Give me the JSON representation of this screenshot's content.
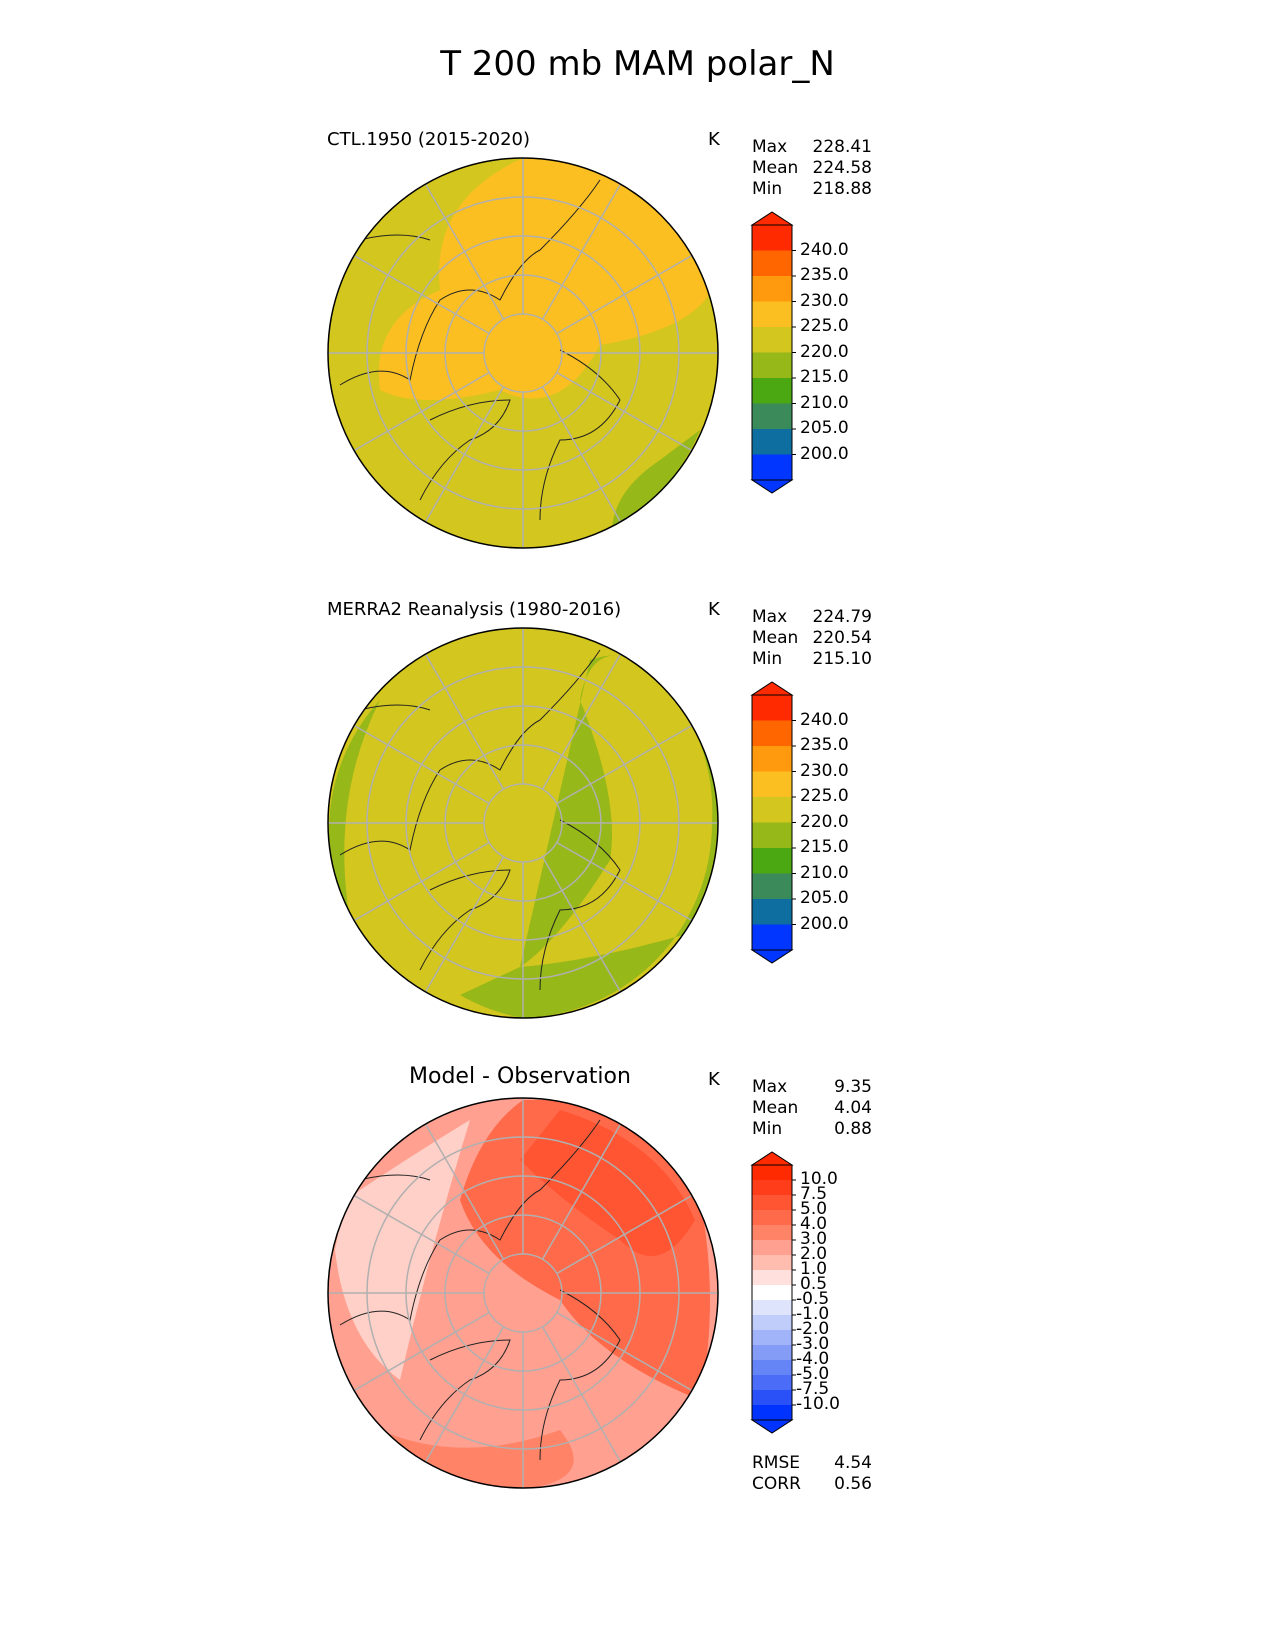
{
  "figure_title": "T 200 mb MAM polar_N",
  "panels": [
    {
      "title": "CTL.1950 (2015-2020)",
      "units": "K",
      "stats": {
        "max_label": "Max",
        "max": "228.41",
        "mean_label": "Mean",
        "mean": "224.58",
        "min_label": "Min",
        "min": "218.88"
      },
      "base_color": "#d3c61e",
      "colorbar": "abs"
    },
    {
      "title": "MERRA2 Reanalysis (1980-2016)",
      "units": "K",
      "stats": {
        "max_label": "Max",
        "max": "224.79",
        "mean_label": "Mean",
        "mean": "220.54",
        "min_label": "Min",
        "min": "215.10"
      },
      "base_color": "#d3c61e",
      "colorbar": "abs"
    },
    {
      "title": "Model - Observation",
      "units": "K",
      "stats": {
        "max_label": "Max",
        "max": "9.35",
        "mean_label": "Mean",
        "mean": "4.04",
        "min_label": "Min",
        "min": "0.88"
      },
      "extra": {
        "rmse_label": "RMSE",
        "rmse": "4.54",
        "corr_label": "CORR",
        "corr": "0.56"
      },
      "base_color": "#ffa090",
      "colorbar": "diff"
    }
  ],
  "colorbars": {
    "abs": {
      "levels": [
        "240.0",
        "235.0",
        "230.0",
        "225.0",
        "220.0",
        "215.0",
        "210.0",
        "205.0",
        "200.0"
      ],
      "colors": [
        "#ff2a00",
        "#ff6600",
        "#ff9a0f",
        "#fbbf22",
        "#d3c61e",
        "#96b818",
        "#4ca812",
        "#3b8a5a",
        "#0f6ea0",
        "#0036ff"
      ]
    },
    "diff": {
      "levels": [
        "10.0",
        "7.5",
        "5.0",
        "4.0",
        "3.0",
        "2.0",
        "1.0",
        "0.5",
        "-0.5",
        "-1.0",
        "-2.0",
        "-3.0",
        "-4.0",
        "-5.0",
        "-7.5",
        "-10.0"
      ],
      "colors": [
        "#ff2a00",
        "#ff3d1a",
        "#ff5533",
        "#ff6a4a",
        "#ff8366",
        "#ffa090",
        "#ffbdb0",
        "#ffe0dc",
        "#ffffff",
        "#dde4fc",
        "#c0cdfb",
        "#a2b4f9",
        "#859cf7",
        "#6585f6",
        "#4a6cf7",
        "#2a50f8",
        "#0033ff"
      ]
    }
  }
}
